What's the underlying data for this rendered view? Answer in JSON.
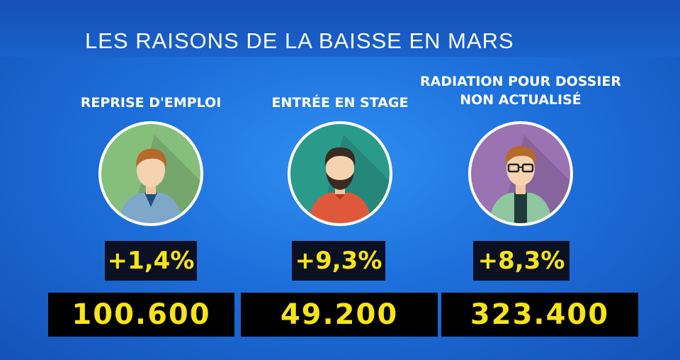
{
  "title": "LES RAISONS DE LA BAISSE EN MARS",
  "colors": {
    "background": "#1d6fdb",
    "value_text": "#f6e418",
    "box_background": "#000000"
  },
  "items": [
    {
      "label_lines": [
        "REPRISE D'EMPLOI"
      ],
      "avatar_icon": "man-with-jacket-icon",
      "avatar_bg": "#86bf7c",
      "percentage": "+1,4%",
      "value": "100.600"
    },
    {
      "label_lines": [
        "ENTRÉE EN STAGE"
      ],
      "avatar_icon": "bearded-man-icon",
      "avatar_bg": "#2a9a8b",
      "percentage": "+9,3%",
      "value": "49.200"
    },
    {
      "label_lines": [
        "RADIATION POUR DOSSIER",
        "NON ACTUALISÉ"
      ],
      "avatar_icon": "man-with-glasses-icon",
      "avatar_bg": "#9b72b2",
      "percentage": "+8,3%",
      "value": "323.400"
    }
  ]
}
